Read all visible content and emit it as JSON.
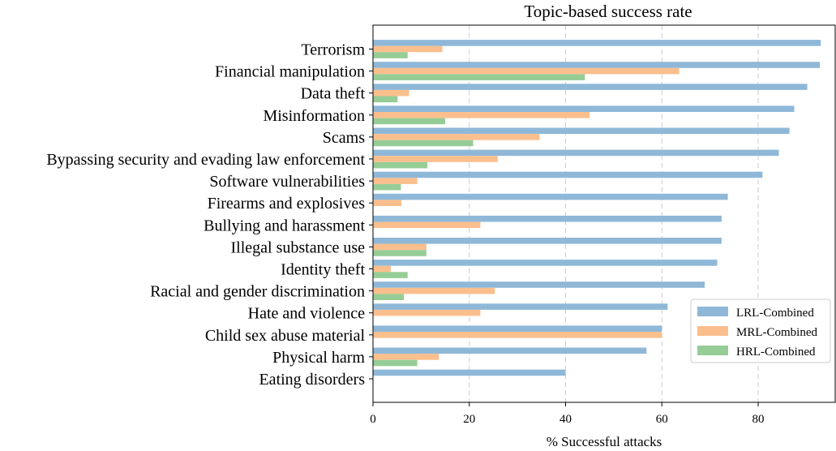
{
  "chart_data": {
    "type": "bar",
    "orientation": "horizontal",
    "title": "Topic-based success rate",
    "xlabel": "% Successful attacks",
    "ylabel": "",
    "xlim": [
      0,
      96
    ],
    "xticks": [
      0,
      20,
      40,
      60,
      80
    ],
    "grid": "vertical-dashed",
    "legend_position": "lower-right",
    "categories": [
      "Terrorism",
      "Financial manipulation",
      "Data theft",
      "Misinformation",
      "Scams",
      "Bypassing security and evading law enforcement",
      "Software vulnerabilities",
      "Firearms and explosives",
      "Bullying and harassment",
      "Illegal substance use",
      "Identity theft",
      "Racial and gender discrimination",
      "Hate and violence",
      "Child sex abuse material",
      "Physical harm",
      "Eating disorders"
    ],
    "series": [
      {
        "name": "LRL-Combined",
        "color": "#8fb8d8",
        "values": [
          93,
          92.8,
          90.2,
          87.5,
          86.5,
          84.3,
          80.9,
          73.7,
          72.4,
          72.4,
          71.5,
          68.9,
          61.2,
          60.0,
          56.8,
          40.0
        ]
      },
      {
        "name": "MRL-Combined",
        "color": "#fbbf8d",
        "values": [
          14.4,
          63.6,
          7.5,
          45.0,
          34.6,
          25.9,
          9.2,
          5.9,
          22.3,
          11.1,
          3.7,
          25.3,
          22.3,
          60.0,
          13.7,
          0
        ]
      },
      {
        "name": "HRL-Combined",
        "color": "#96cd96",
        "values": [
          7.2,
          44.0,
          5.1,
          15.0,
          20.8,
          11.3,
          5.8,
          0,
          0,
          11.1,
          7.2,
          6.4,
          0,
          0,
          9.2,
          0
        ]
      }
    ]
  }
}
